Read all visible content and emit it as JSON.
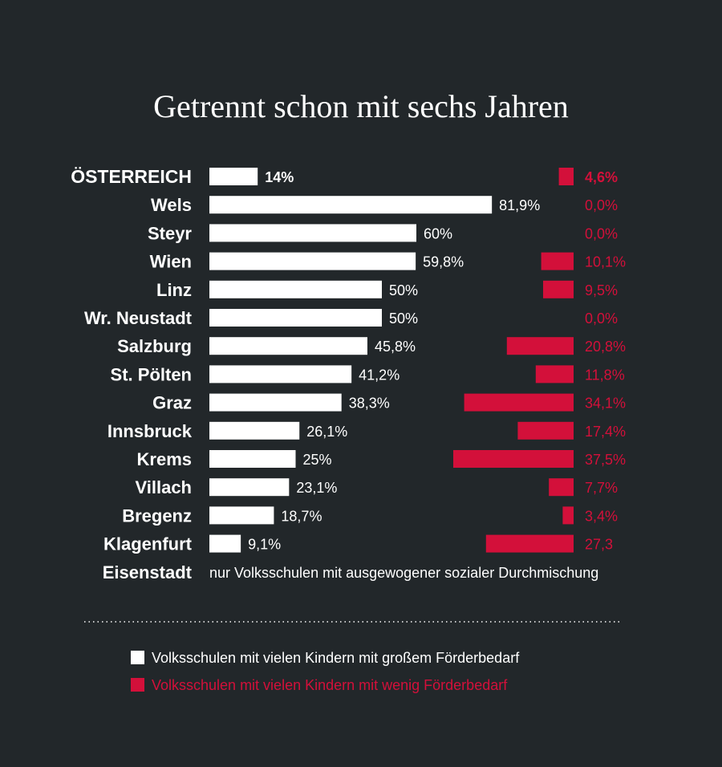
{
  "chart_data": {
    "type": "bar",
    "title": "Getrennt schon mit sechs Jahren",
    "categories": [
      "ÖSTERREICH",
      "Wels",
      "Steyr",
      "Wien",
      "Linz",
      "Wr. Neustadt",
      "Salzburg",
      "St. Pölten",
      "Graz",
      "Innsbruck",
      "Krems",
      "Villach",
      "Bregenz",
      "Klagenfurt",
      "Eisenstadt"
    ],
    "series": [
      {
        "name": "Volksschulen mit vielen Kindern mit großem Förderbedarf",
        "color": "#ffffff",
        "values": [
          14,
          81.9,
          60,
          59.8,
          50,
          50,
          45.8,
          41.2,
          38.3,
          26.1,
          25,
          23.1,
          18.7,
          9.1,
          null
        ],
        "labels": [
          "14%",
          "81,9%",
          "60%",
          "59,8%",
          "50%",
          "50%",
          "45,8%",
          "41,2%",
          "38,3%",
          "26,1%",
          "25%",
          "23,1%",
          "18,7%",
          "9,1%",
          ""
        ]
      },
      {
        "name": "Volksschulen mit vielen Kindern mit wenig Förderbedarf",
        "color": "#d3103a",
        "values": [
          4.6,
          0,
          0,
          10.1,
          9.5,
          0,
          20.8,
          11.8,
          34.1,
          17.4,
          37.5,
          7.7,
          3.4,
          27.3,
          null
        ],
        "labels": [
          "4,6%",
          "0,0%",
          "0,0%",
          "10,1%",
          "9,5%",
          "0,0%",
          "20,8%",
          "11,8%",
          "34,1%",
          "17,4%",
          "37,5%",
          "7,7%",
          "3,4%",
          "27,3",
          ""
        ]
      }
    ],
    "annotation": "nur Volksschulen mit ausgewogener sozialer Durchmischung",
    "legend_position": "bottom-left"
  }
}
